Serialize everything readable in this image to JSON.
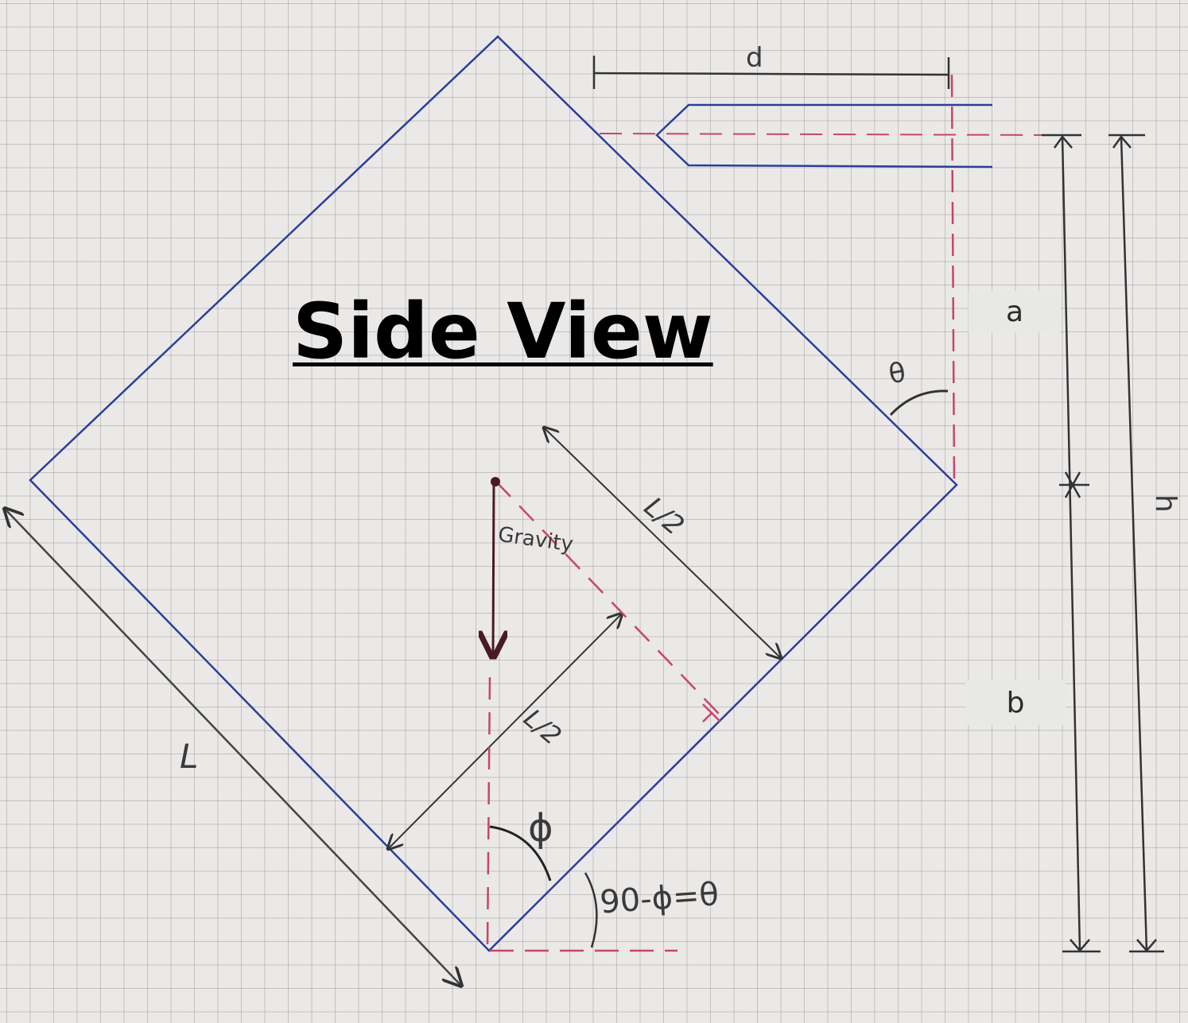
{
  "title": "Side View",
  "labels": {
    "d": "d",
    "a": "a",
    "b": "b",
    "h": "h",
    "L": "L",
    "L_half_upper": "L/2",
    "L_half_lower": "L/2",
    "theta": "θ",
    "phi": "ϕ",
    "relation": "90-ϕ=θ",
    "gravity": "Gravity"
  },
  "colors": {
    "square": "#2c3e9a",
    "dashed": "#c8456a",
    "dimension": "#333333",
    "gravity": "#4a1a24"
  }
}
